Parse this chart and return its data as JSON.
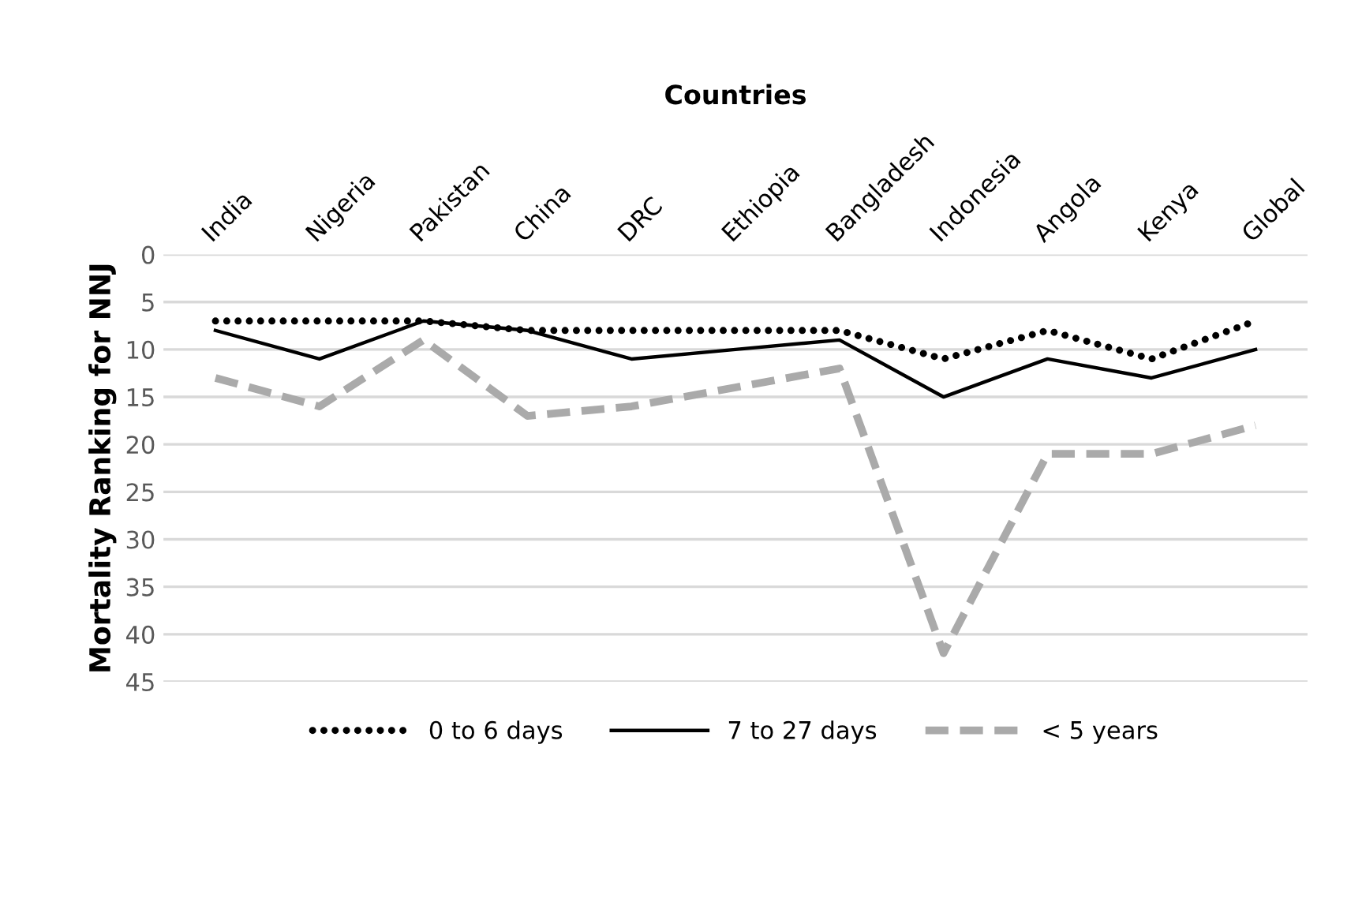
{
  "chart_data": {
    "type": "line",
    "xlabel": "Countries",
    "ylabel": "Mortality Ranking for NNJ",
    "categories": [
      "India",
      "Nigeria",
      "Pakistan",
      "China",
      "DRC",
      "Ethiopia",
      "Bangladesh",
      "Indonesia",
      "Angola",
      "Kenya",
      "Global"
    ],
    "series": [
      {
        "name": "0 to 6 days",
        "color": "#000000",
        "line_style": "dotted",
        "values": [
          7,
          7,
          7,
          8,
          8,
          8,
          8,
          11,
          8,
          11,
          7
        ]
      },
      {
        "name": "7 to 27 days",
        "color": "#000000",
        "line_style": "solid",
        "values": [
          8,
          11,
          7,
          8,
          11,
          10,
          9,
          15,
          11,
          13,
          10
        ]
      },
      {
        "name": "< 5 years",
        "color": "#aaaaaa",
        "line_style": "dashed",
        "values": [
          13,
          16,
          9,
          17,
          16,
          14,
          12,
          42,
          21,
          21,
          18
        ]
      }
    ],
    "ylim": [
      45,
      0
    ],
    "yticks": [
      0,
      5,
      10,
      15,
      20,
      25,
      30,
      35,
      40,
      45
    ],
    "grid": "y",
    "legend": "bottom"
  }
}
